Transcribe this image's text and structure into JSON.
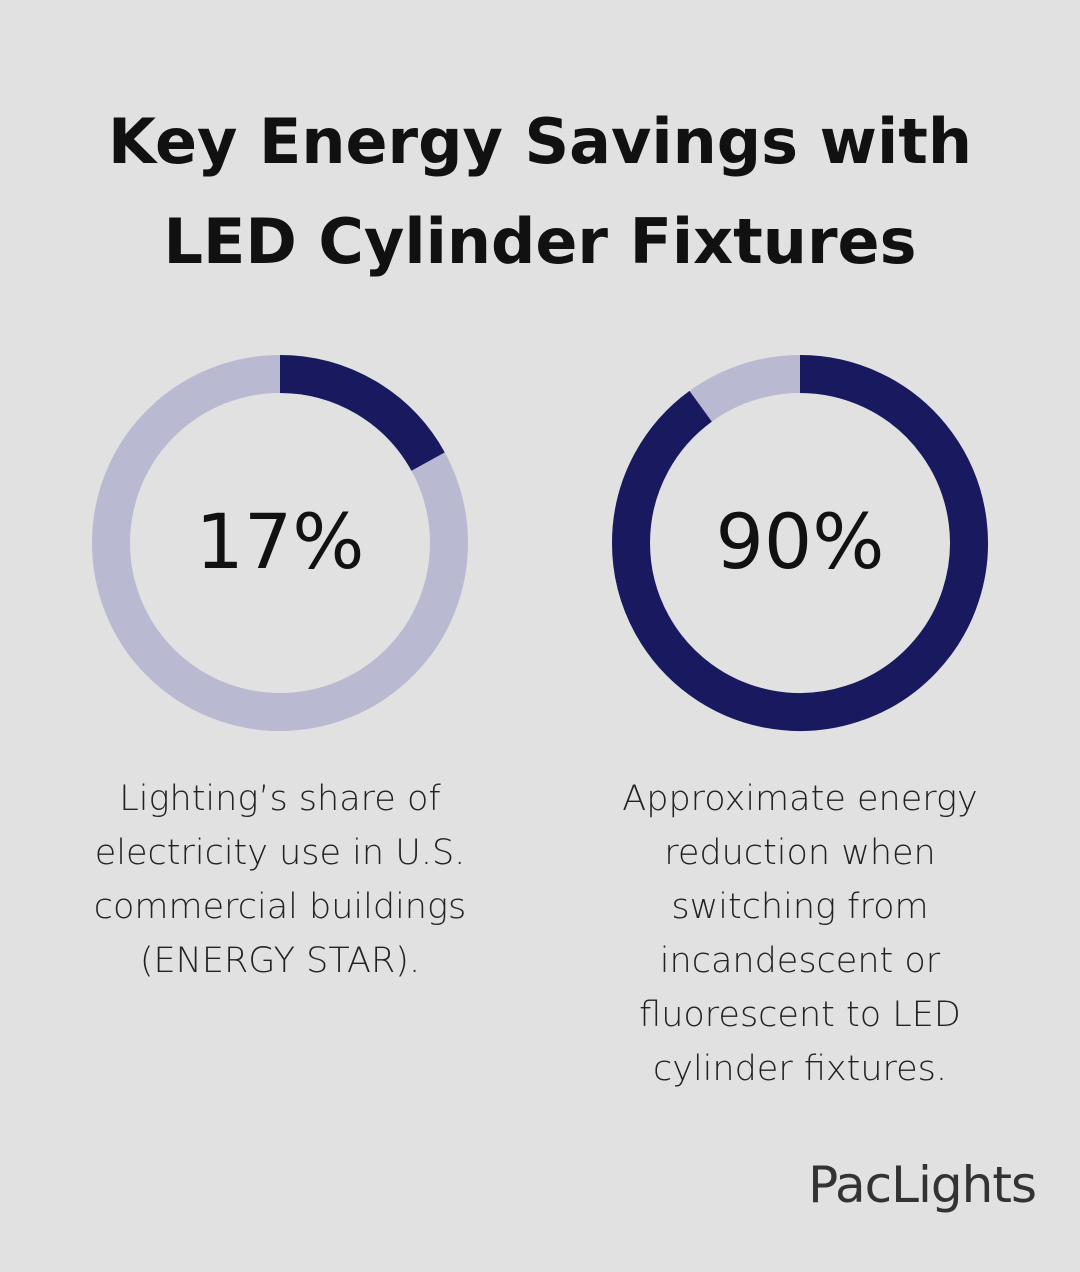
{
  "title": "Key Energy Savings with LED Cylinder Fixtures",
  "chart_data": [
    {
      "type": "donut",
      "values": [
        17
      ],
      "value_labels": [
        "17%"
      ],
      "color": "#191960",
      "track_color": "#b9bad1",
      "description": "Lighting’s share of electricity use in U.S. commercial buildings (ENERGY STAR)."
    },
    {
      "type": "donut",
      "values": [
        90
      ],
      "value_labels": [
        "90%"
      ],
      "color": "#191960",
      "track_color": "#b9bad1",
      "description": "Approximate energy reduction when switching from incandescent or fluorescent to LED cylinder fixtures."
    }
  ],
  "brand": "PacLights"
}
